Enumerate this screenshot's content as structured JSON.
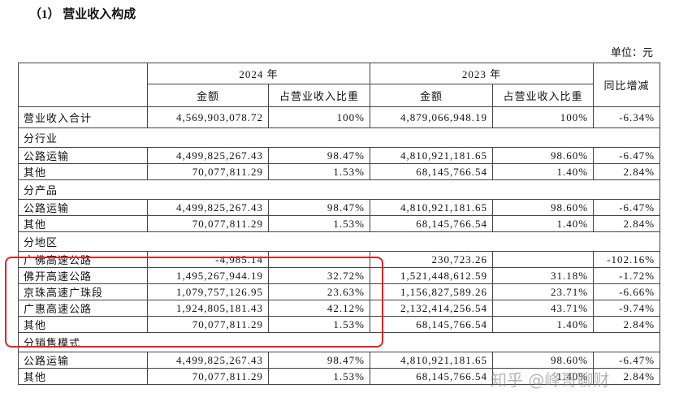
{
  "title": "（1） 营业收入构成",
  "unit": "单位：元",
  "table": {
    "header": {
      "year_a": "2024 年",
      "year_b": "2023 年",
      "change": "同比增减",
      "columns": [
        "金额",
        "占营业收入比重",
        "金额",
        "占营业收入比重"
      ]
    },
    "rows": [
      {
        "cells": [
          "营业收入合计",
          "4,569,903,078.72",
          "100%",
          "4,879,066,948.19",
          "100%",
          "-6.34%"
        ]
      },
      {
        "section": "分行业"
      },
      {
        "cells": [
          "公路运输",
          "4,499,825,267.43",
          "98.47%",
          "4,810,921,181.65",
          "98.60%",
          "-6.47%"
        ]
      },
      {
        "cells": [
          "其他",
          "70,077,811.29",
          "1.53%",
          "68,145,766.54",
          "1.40%",
          "2.84%"
        ]
      },
      {
        "section": "分产品"
      },
      {
        "cells": [
          "公路运输",
          "4,499,825,267.43",
          "98.47%",
          "4,810,921,181.65",
          "98.60%",
          "-6.47%"
        ]
      },
      {
        "cells": [
          "其他",
          "70,077,811.29",
          "1.53%",
          "68,145,766.54",
          "1.40%",
          "2.84%"
        ]
      },
      {
        "section": "分地区"
      },
      {
        "cells": [
          "广佛高速公路",
          "-4,985.14",
          null,
          "230,723.26",
          null,
          "-102.16%"
        ]
      },
      {
        "cells": [
          "佛开高速公路",
          "1,495,267,944.19",
          "32.72%",
          "1,521,448,612.59",
          "31.18%",
          "-1.72%"
        ]
      },
      {
        "cells": [
          "京珠高速广珠段",
          "1,079,757,126.95",
          "23.63%",
          "1,156,827,589.26",
          "23.71%",
          "-6.66%"
        ]
      },
      {
        "cells": [
          "广惠高速公路",
          "1,924,805,181.43",
          "42.12%",
          "2,132,414,256.54",
          "43.71%",
          "-9.74%"
        ]
      },
      {
        "cells": [
          "其他",
          "70,077,811.29",
          "1.53%",
          "68,145,766.54",
          "1.40%",
          "2.84%"
        ]
      },
      {
        "section": "分销售模式"
      },
      {
        "cells": [
          "公路运输",
          "4,499,825,267.43",
          "98.47%",
          "4,810,921,181.65",
          "98.60%",
          "-6.47%"
        ]
      },
      {
        "cells": [
          "其他",
          "70,077,811.29",
          "1.53%",
          "68,145,766.54",
          "1.40%",
          "2.84%"
        ]
      }
    ]
  },
  "watermark": "知乎 @峰哥聊财"
}
